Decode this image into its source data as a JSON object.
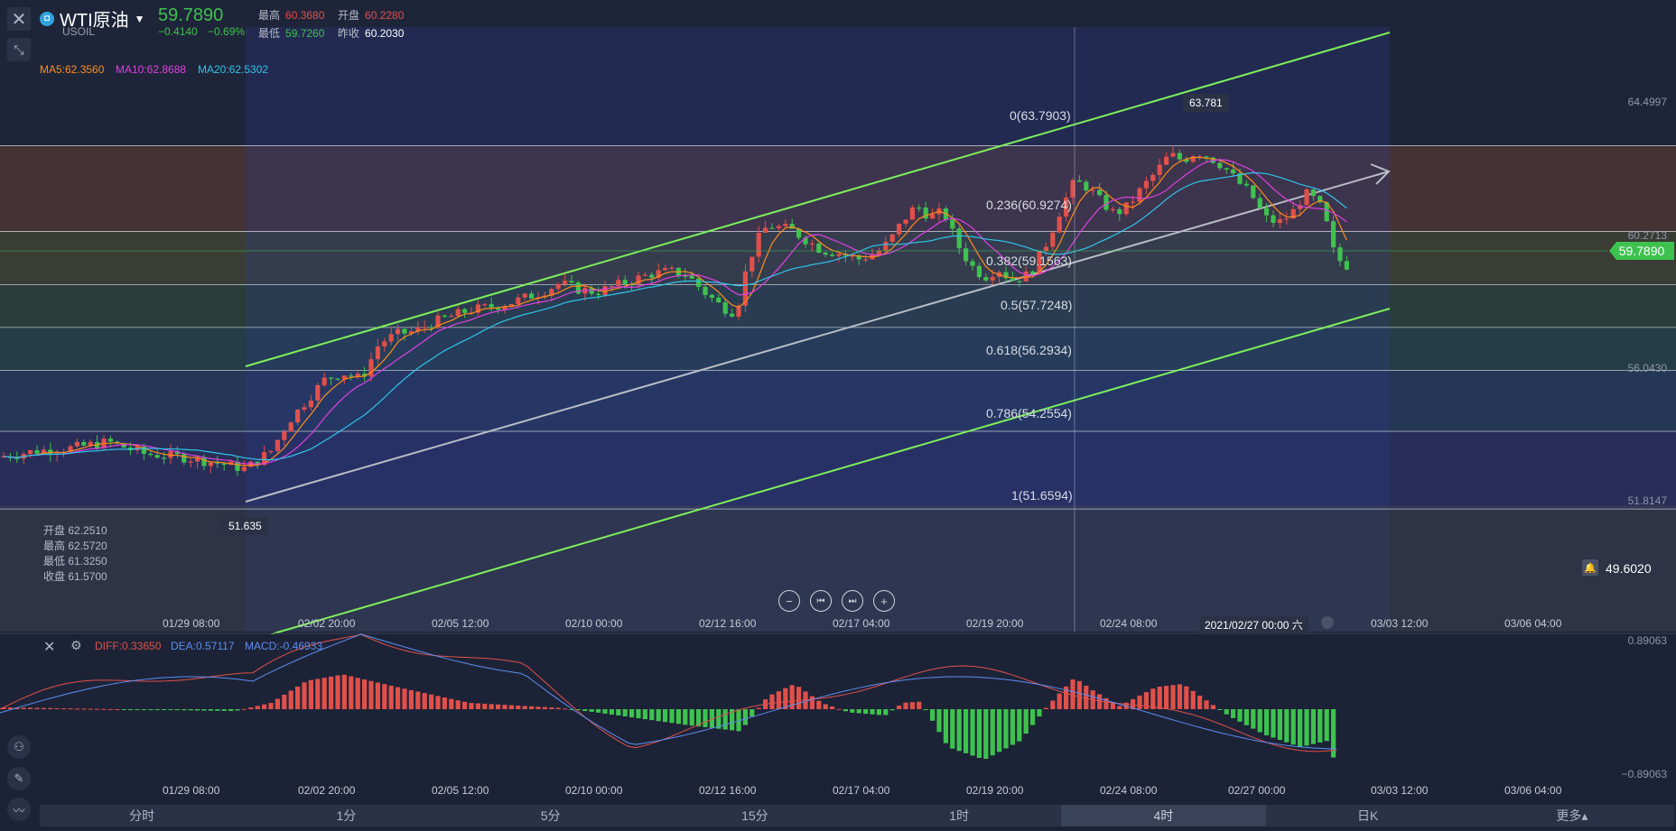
{
  "header": {
    "symbol_name": "WTI原油",
    "symbol_code": "USOIL",
    "price": "59.7890",
    "change": "−0.4140",
    "change_pct": "−0.69%",
    "high_label": "最高",
    "high": "60.3680",
    "open_label": "开盘",
    "open": "60.2280",
    "low_label": "最低",
    "low": "59.7260",
    "prev_label": "昨收",
    "prev": "60.2030"
  },
  "ma": {
    "ma5": "MA5:62.3560",
    "ma10": "MA10:62.8688",
    "ma20": "MA20:62.5302",
    "ma5_color": "#ff8c1a",
    "ma10_color": "#e040e0",
    "ma20_color": "#2ec4e8"
  },
  "price_axis": {
    "p1": "64.4997",
    "p2": "60.2713",
    "p3": "56.0430",
    "p4": "51.8147",
    "current": "59.7890",
    "alert_price": "49.6020"
  },
  "fib": {
    "f0": "0(63.7903)",
    "f236": "0.236(60.9274)",
    "f382": "0.382(59.1563)",
    "f5": "0.5(57.7248)",
    "f618": "0.618(56.2934)",
    "f786": "0.786(54.2554)",
    "f1": "1(51.6594)"
  },
  "markers": {
    "high": "63.781",
    "low": "51.635"
  },
  "ohlc_panel": {
    "open": "开盘 62.2510",
    "high": "最高 62.5720",
    "low": "最低 61.3250",
    "close": "收盘 61.5700"
  },
  "x_axis": [
    "01/29 08:00",
    "02/02 20:00",
    "02/05 12:00",
    "02/10 00:00",
    "02/12 16:00",
    "02/17 04:00",
    "02/19 20:00",
    "02/24 08:00",
    "03/03 12:00",
    "03/06 04:00"
  ],
  "x_axis_lower": [
    "01/29 08:00",
    "02/02 20:00",
    "02/05 12:00",
    "02/10 00:00",
    "02/12 16:00",
    "02/17 04:00",
    "02/19 20:00",
    "02/24 08:00",
    "02/27 00:00",
    "03/03 12:00",
    "03/06 04:00"
  ],
  "crosshair_time": "2021/02/27 00:00 六",
  "macd": {
    "diff": "DIFF:0.33650",
    "dea": "DEA:0.57117",
    "macd": "MACD:-0.46933",
    "top": "0.89063",
    "bottom": "−0.89063"
  },
  "timeframes": [
    "分时",
    "1分",
    "5分",
    "15分",
    "1时",
    "4时",
    "日K",
    "更多▴"
  ],
  "active_timeframe": 5,
  "colors": {
    "up": "#e0504a",
    "down": "#3ec24f",
    "channel": "#7ef05a"
  }
}
